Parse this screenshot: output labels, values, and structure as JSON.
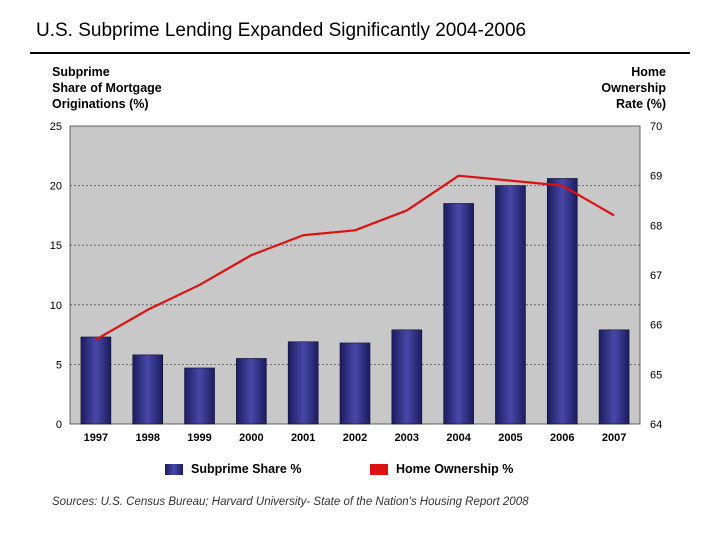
{
  "chart_data": {
    "type": "bar+line",
    "title": "U.S. Subprime Lending Expanded Significantly 2004-2006",
    "left_axis_label": [
      "Subprime",
      "Share of Mortgage",
      "Originations (%)"
    ],
    "right_axis_label": [
      "Home",
      "Ownership",
      "Rate (%)"
    ],
    "categories": [
      "1997",
      "1998",
      "1999",
      "2000",
      "2001",
      "2002",
      "2003",
      "2004",
      "2005",
      "2006",
      "2007"
    ],
    "left_ylim": [
      0,
      25
    ],
    "left_ticks": [
      0,
      5,
      10,
      15,
      20,
      25
    ],
    "right_ylim": [
      64,
      70
    ],
    "right_ticks": [
      64,
      65,
      66,
      67,
      68,
      69,
      70
    ],
    "series": [
      {
        "name": "Subprime Share %",
        "type": "bar",
        "axis": "left",
        "values": [
          7.3,
          5.8,
          4.7,
          5.5,
          6.9,
          6.8,
          7.9,
          18.5,
          20.0,
          20.6,
          7.9
        ]
      },
      {
        "name": "Home Ownership %",
        "type": "line",
        "axis": "right",
        "values": [
          65.7,
          66.3,
          66.8,
          67.4,
          67.8,
          67.9,
          68.3,
          69.0,
          68.9,
          68.8,
          68.2
        ]
      }
    ],
    "colors": {
      "bar": "#2a2a7a",
      "bar_light": "#5a5ab8",
      "line": "#dd1111",
      "plot_bg": "#c8c8c8"
    }
  },
  "legend": {
    "bar_label": "Subprime Share %",
    "line_label": "Home Ownership %"
  },
  "source": "Sources:  U.S. Census Bureau; Harvard University- State of the Nation's Housing Report 2008"
}
